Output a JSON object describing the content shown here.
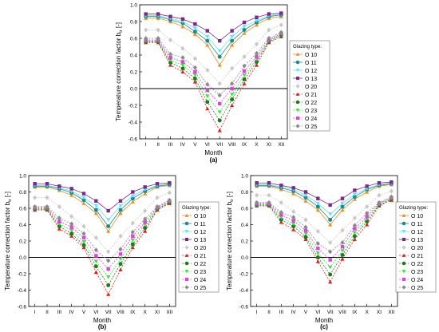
{
  "panels": [
    {
      "caption": "(a)",
      "chart_data": {
        "type": "line",
        "xlabel": "Month",
        "ylabel": "Temperature correction factor b",
        "ylabel_sub": "tr",
        "ylabel_unit": " [-]",
        "categories": [
          "I",
          "II",
          "III",
          "IV",
          "V",
          "VI",
          "VII",
          "VIII",
          "IX",
          "X",
          "XI",
          "XII"
        ],
        "ylim": [
          -0.6,
          1.0
        ],
        "yticks": [
          "-0.6",
          "-0.4",
          "-0.2",
          "0.0",
          "0.2",
          "0.4",
          "0.6",
          "0.8",
          "1.0"
        ],
        "grid": false,
        "legend_position": "right",
        "legend_title": "Glazing type:",
        "series": [
          {
            "name": "O 10",
            "color": "#e8902a",
            "marker": "triangle-up",
            "values": [
              0.84,
              0.84,
              0.8,
              0.74,
              0.65,
              0.52,
              0.28,
              0.52,
              0.66,
              0.76,
              0.84,
              0.86
            ]
          },
          {
            "name": "O 11",
            "color": "#1f8a8a",
            "marker": "circle",
            "values": [
              0.86,
              0.86,
              0.82,
              0.78,
              0.68,
              0.57,
              0.38,
              0.57,
              0.7,
              0.79,
              0.86,
              0.88
            ]
          },
          {
            "name": "O 12",
            "color": "#5fe5ef",
            "marker": "triangle-down",
            "values": [
              0.87,
              0.87,
              0.84,
              0.8,
              0.72,
              0.62,
              0.45,
              0.62,
              0.74,
              0.81,
              0.87,
              0.89
            ]
          },
          {
            "name": "O 13",
            "color": "#7a2a8a",
            "marker": "square",
            "values": [
              0.89,
              0.89,
              0.86,
              0.83,
              0.77,
              0.69,
              0.57,
              0.69,
              0.79,
              0.85,
              0.89,
              0.9
            ]
          },
          {
            "name": "O 20",
            "color": "#c8c8c8",
            "marker": "diamond",
            "values": [
              0.7,
              0.7,
              0.58,
              0.48,
              0.36,
              0.22,
              0.06,
              0.24,
              0.38,
              0.53,
              0.7,
              0.76
            ]
          },
          {
            "name": "O 21",
            "color": "#e02020",
            "marker": "triangle-up",
            "values": [
              0.55,
              0.55,
              0.28,
              0.2,
              0.08,
              -0.24,
              -0.5,
              -0.2,
              0.06,
              0.28,
              0.55,
              0.62
            ]
          },
          {
            "name": "O 22",
            "color": "#1e7a1e",
            "marker": "circle",
            "values": [
              0.56,
              0.56,
              0.31,
              0.24,
              0.12,
              -0.16,
              -0.38,
              -0.13,
              0.11,
              0.32,
              0.56,
              0.64
            ]
          },
          {
            "name": "O 23",
            "color": "#40e040",
            "marker": "triangle-down",
            "values": [
              0.57,
              0.57,
              0.34,
              0.28,
              0.16,
              -0.09,
              -0.28,
              -0.07,
              0.16,
              0.35,
              0.57,
              0.65
            ]
          },
          {
            "name": "O 24",
            "color": "#e040e0",
            "marker": "square",
            "values": [
              0.58,
              0.58,
              0.37,
              0.32,
              0.2,
              -0.02,
              -0.18,
              0.0,
              0.21,
              0.38,
              0.58,
              0.66
            ]
          },
          {
            "name": "O 25",
            "color": "#8a8a8a",
            "marker": "diamond",
            "values": [
              0.6,
              0.6,
              0.41,
              0.37,
              0.25,
              0.05,
              -0.08,
              0.06,
              0.27,
              0.42,
              0.6,
              0.67
            ]
          }
        ]
      }
    },
    {
      "caption": "(b)",
      "chart_data": {
        "type": "line",
        "xlabel": "Month",
        "ylabel": "Temperature correction factor b",
        "ylabel_sub": "tr",
        "ylabel_unit": " [-]",
        "categories": [
          "I",
          "II",
          "III",
          "IV",
          "V",
          "VI",
          "VII",
          "VIII",
          "IX",
          "X",
          "XI",
          "XII"
        ],
        "ylim": [
          -0.6,
          1.0
        ],
        "yticks": [
          "-0.6",
          "-0.4",
          "-0.2",
          "0.0",
          "0.2",
          "0.4",
          "0.6",
          "0.8",
          "1.0"
        ],
        "grid": false,
        "legend_position": "right",
        "legend_title": "Glazing type:",
        "series": [
          {
            "name": "O 10",
            "color": "#e8902a",
            "marker": "triangle-up",
            "values": [
              0.86,
              0.86,
              0.82,
              0.76,
              0.66,
              0.54,
              0.32,
              0.54,
              0.68,
              0.78,
              0.86,
              0.88
            ]
          },
          {
            "name": "O 11",
            "color": "#1f8a8a",
            "marker": "circle",
            "values": [
              0.87,
              0.87,
              0.84,
              0.79,
              0.7,
              0.58,
              0.38,
              0.58,
              0.72,
              0.81,
              0.87,
              0.89
            ]
          },
          {
            "name": "O 12",
            "color": "#5fe5ef",
            "marker": "triangle-down",
            "values": [
              0.88,
              0.88,
              0.85,
              0.81,
              0.73,
              0.63,
              0.46,
              0.63,
              0.75,
              0.83,
              0.88,
              0.9
            ]
          },
          {
            "name": "O 13",
            "color": "#7a2a8a",
            "marker": "square",
            "values": [
              0.9,
              0.9,
              0.87,
              0.84,
              0.78,
              0.69,
              0.57,
              0.69,
              0.8,
              0.86,
              0.9,
              0.91
            ]
          },
          {
            "name": "O 20",
            "color": "#c8c8c8",
            "marker": "diamond",
            "values": [
              0.73,
              0.73,
              0.62,
              0.5,
              0.38,
              0.24,
              0.07,
              0.26,
              0.42,
              0.57,
              0.73,
              0.79
            ]
          },
          {
            "name": "O 21",
            "color": "#e02020",
            "marker": "triangle-up",
            "values": [
              0.58,
              0.58,
              0.35,
              0.26,
              0.12,
              -0.18,
              -0.45,
              -0.15,
              0.12,
              0.32,
              0.58,
              0.66
            ]
          },
          {
            "name": "O 22",
            "color": "#1e7a1e",
            "marker": "circle",
            "values": [
              0.59,
              0.59,
              0.38,
              0.29,
              0.15,
              -0.11,
              -0.34,
              -0.08,
              0.16,
              0.36,
              0.59,
              0.67
            ]
          },
          {
            "name": "O 23",
            "color": "#40e040",
            "marker": "triangle-down",
            "values": [
              0.6,
              0.6,
              0.41,
              0.33,
              0.19,
              -0.05,
              -0.24,
              -0.02,
              0.21,
              0.4,
              0.6,
              0.68
            ]
          },
          {
            "name": "O 24",
            "color": "#e040e0",
            "marker": "square",
            "values": [
              0.61,
              0.61,
              0.44,
              0.37,
              0.24,
              0.02,
              -0.14,
              0.04,
              0.26,
              0.43,
              0.61,
              0.69
            ]
          },
          {
            "name": "O 25",
            "color": "#8a8a8a",
            "marker": "diamond",
            "values": [
              0.62,
              0.62,
              0.48,
              0.41,
              0.29,
              0.09,
              -0.04,
              0.1,
              0.31,
              0.47,
              0.62,
              0.7
            ]
          }
        ]
      }
    },
    {
      "caption": "(c)",
      "chart_data": {
        "type": "line",
        "xlabel": "Month",
        "ylabel": "Temperature correction factor b",
        "ylabel_sub": "tr",
        "ylabel_unit": " [-]",
        "categories": [
          "I",
          "II",
          "III",
          "IV",
          "V",
          "VI",
          "VII",
          "VIII",
          "IX",
          "X",
          "XI",
          "XII"
        ],
        "ylim": [
          -0.6,
          1.0
        ],
        "yticks": [
          "-0.6",
          "-0.4",
          "-0.2",
          "0.0",
          "0.2",
          "0.4",
          "0.6",
          "0.8",
          "1.0"
        ],
        "grid": false,
        "legend_position": "right",
        "legend_title": "Glazing type:",
        "series": [
          {
            "name": "O 10",
            "color": "#e8902a",
            "marker": "triangle-up",
            "values": [
              0.87,
              0.87,
              0.83,
              0.78,
              0.69,
              0.58,
              0.4,
              0.58,
              0.71,
              0.8,
              0.87,
              0.89
            ]
          },
          {
            "name": "O 11",
            "color": "#1f8a8a",
            "marker": "circle",
            "values": [
              0.88,
              0.88,
              0.85,
              0.81,
              0.73,
              0.62,
              0.46,
              0.62,
              0.74,
              0.83,
              0.88,
              0.9
            ]
          },
          {
            "name": "O 12",
            "color": "#5fe5ef",
            "marker": "triangle-down",
            "values": [
              0.89,
              0.89,
              0.86,
              0.83,
              0.76,
              0.66,
              0.53,
              0.66,
              0.77,
              0.84,
              0.89,
              0.91
            ]
          },
          {
            "name": "O 13",
            "color": "#7a2a8a",
            "marker": "square",
            "values": [
              0.91,
              0.91,
              0.88,
              0.85,
              0.8,
              0.72,
              0.64,
              0.72,
              0.82,
              0.87,
              0.91,
              0.92
            ]
          },
          {
            "name": "O 20",
            "color": "#c8c8c8",
            "marker": "diamond",
            "values": [
              0.76,
              0.76,
              0.67,
              0.56,
              0.46,
              0.32,
              0.18,
              0.33,
              0.48,
              0.62,
              0.76,
              0.81
            ]
          },
          {
            "name": "O 21",
            "color": "#e02020",
            "marker": "triangle-up",
            "values": [
              0.63,
              0.63,
              0.43,
              0.34,
              0.22,
              -0.05,
              -0.3,
              -0.02,
              0.22,
              0.4,
              0.63,
              0.7
            ]
          },
          {
            "name": "O 22",
            "color": "#1e7a1e",
            "marker": "circle",
            "values": [
              0.64,
              0.64,
              0.46,
              0.38,
              0.25,
              0.0,
              -0.21,
              0.03,
              0.26,
              0.44,
              0.64,
              0.71
            ]
          },
          {
            "name": "O 23",
            "color": "#40e040",
            "marker": "triangle-down",
            "values": [
              0.65,
              0.65,
              0.49,
              0.41,
              0.29,
              0.05,
              -0.12,
              0.08,
              0.3,
              0.47,
              0.65,
              0.72
            ]
          },
          {
            "name": "O 24",
            "color": "#e040e0",
            "marker": "square",
            "values": [
              0.66,
              0.66,
              0.52,
              0.45,
              0.33,
              0.11,
              -0.03,
              0.13,
              0.35,
              0.5,
              0.66,
              0.73
            ]
          },
          {
            "name": "O 25",
            "color": "#8a8a8a",
            "marker": "diamond",
            "values": [
              0.67,
              0.67,
              0.55,
              0.49,
              0.37,
              0.17,
              0.07,
              0.18,
              0.39,
              0.54,
              0.67,
              0.74
            ]
          }
        ]
      }
    }
  ]
}
